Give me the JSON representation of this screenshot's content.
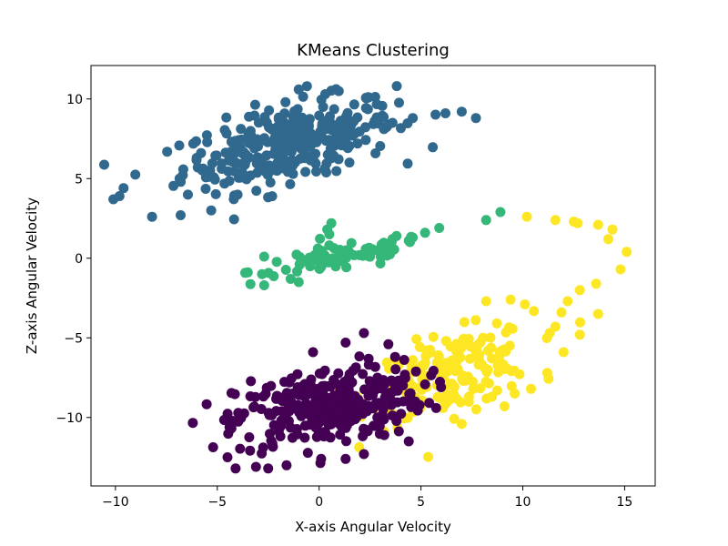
{
  "chart_data": {
    "type": "scatter",
    "title": "KMeans Clustering",
    "xlabel": "X-axis Angular Velocity",
    "ylabel": "Z-axis Angular Velocity",
    "xlim": [
      -11.2,
      16.5
    ],
    "ylim": [
      -14.3,
      12.1
    ],
    "xticks": [
      -10,
      -5,
      0,
      5,
      10,
      15
    ],
    "xtick_labels": [
      "−10",
      "−5",
      "0",
      "5",
      "10",
      "15"
    ],
    "yticks": [
      -10,
      -5,
      0,
      5,
      10
    ],
    "ytick_labels": [
      "−10",
      "−5",
      "0",
      "5",
      "10"
    ],
    "grid": false,
    "legend": "none",
    "clusters": [
      {
        "color": "#31688e",
        "center": [
          -1.5,
          7.2
        ],
        "spread": [
          2.6,
          1.4
        ],
        "corr": 0.55,
        "count": 320,
        "points": [
          [
            -10.1,
            3.7
          ],
          [
            -9.6,
            4.4
          ],
          [
            -9.8,
            3.9
          ],
          [
            -8.2,
            2.6
          ],
          [
            -6.8,
            2.7
          ],
          [
            -5.3,
            3.0
          ],
          [
            -0.6,
            10.8
          ],
          [
            0.3,
            10.3
          ],
          [
            -1.0,
            10.6
          ],
          [
            3.6,
            8.5
          ],
          [
            4.6,
            8.8
          ],
          [
            6.2,
            9.1
          ],
          [
            7.0,
            9.2
          ],
          [
            7.7,
            8.8
          ]
        ]
      },
      {
        "color": "#35b779",
        "center": [
          1.0,
          0.0
        ],
        "spread": [
          2.2,
          0.6
        ],
        "corr": 0.7,
        "count": 80,
        "points": [
          [
            -2.7,
            0.1
          ],
          [
            -2.8,
            -1.0
          ],
          [
            -2.7,
            -1.7
          ],
          [
            -1.4,
            -1.3
          ],
          [
            -1.0,
            -1.5
          ],
          [
            0.4,
            1.8
          ],
          [
            0.6,
            2.2
          ],
          [
            0.5,
            1.5
          ],
          [
            2.5,
            0.3
          ],
          [
            3.0,
            0.5
          ],
          [
            3.6,
            1.2
          ],
          [
            3.8,
            1.4
          ],
          [
            4.4,
            1.1
          ],
          [
            4.6,
            1.3
          ],
          [
            5.2,
            1.6
          ],
          [
            5.9,
            1.9
          ],
          [
            8.2,
            2.4
          ],
          [
            8.9,
            2.9
          ]
        ]
      },
      {
        "color": "#fde725",
        "center": [
          6.5,
          -7.2
        ],
        "spread": [
          2.0,
          1.4
        ],
        "corr": 0.5,
        "count": 180,
        "points": [
          [
            10.2,
            2.6
          ],
          [
            11.6,
            2.4
          ],
          [
            12.5,
            2.3
          ],
          [
            12.7,
            2.2
          ],
          [
            13.7,
            2.1
          ],
          [
            14.4,
            1.8
          ],
          [
            14.2,
            1.2
          ],
          [
            15.1,
            0.4
          ],
          [
            14.8,
            -0.7
          ],
          [
            13.6,
            -1.6
          ],
          [
            12.8,
            -2.0
          ],
          [
            12.2,
            -2.7
          ],
          [
            11.9,
            -3.4
          ],
          [
            13.7,
            -3.5
          ],
          [
            11.6,
            -4.3
          ],
          [
            12.8,
            -4.8
          ],
          [
            12.0,
            -5.9
          ],
          [
            11.2,
            -7.2
          ],
          [
            10.4,
            -8.2
          ],
          [
            9.6,
            -8.5
          ],
          [
            9.1,
            -9.3
          ],
          [
            7.0,
            -10.4
          ],
          [
            8.2,
            -2.7
          ],
          [
            9.4,
            -2.6
          ],
          [
            10.1,
            -2.9
          ]
        ]
      },
      {
        "color": "#440154",
        "center": [
          0.5,
          -9.3
        ],
        "spread": [
          2.3,
          1.3
        ],
        "corr": 0.35,
        "count": 320,
        "points": [
          [
            -4.4,
            -10.6
          ],
          [
            -4.5,
            -12.5
          ],
          [
            -4.1,
            -13.2
          ],
          [
            -3.1,
            -13.1
          ],
          [
            -2.5,
            -13.2
          ],
          [
            -1.6,
            -13.0
          ],
          [
            0.1,
            -12.6
          ],
          [
            1.3,
            -12.6
          ],
          [
            2.2,
            -12.3
          ],
          [
            -0.3,
            -5.9
          ],
          [
            1.3,
            -5.3
          ],
          [
            2.2,
            -4.7
          ],
          [
            3.4,
            -5.4
          ],
          [
            4.4,
            -11.5
          ]
        ]
      }
    ]
  }
}
